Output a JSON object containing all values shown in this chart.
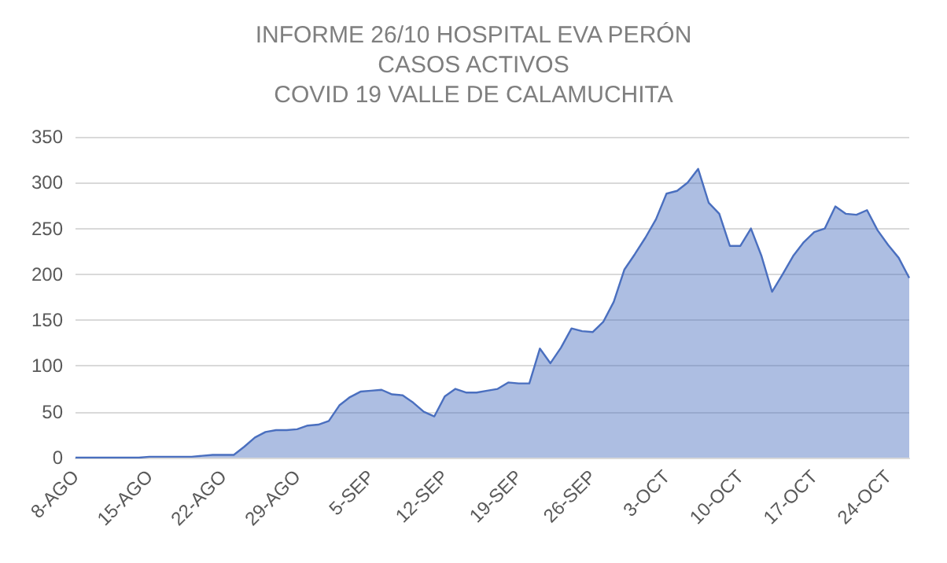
{
  "chart_data": {
    "type": "area",
    "title": "INFORME 26/10 HOSPITAL EVA PERÓN\nCASOS ACTIVOS\nCOVID 19 VALLE DE CALAMUCHITA",
    "categories": [
      "8-AGO",
      null,
      null,
      null,
      null,
      null,
      null,
      "15-AGO",
      null,
      null,
      null,
      null,
      null,
      null,
      "22-AGO",
      null,
      null,
      null,
      null,
      null,
      null,
      "29-AGO",
      null,
      null,
      null,
      null,
      null,
      null,
      "5-SEP",
      null,
      null,
      null,
      null,
      null,
      null,
      "12-SEP",
      null,
      null,
      null,
      null,
      null,
      null,
      "19-SEP",
      null,
      null,
      null,
      null,
      null,
      null,
      "26-SEP",
      null,
      null,
      null,
      null,
      null,
      null,
      "3-OCT",
      null,
      null,
      null,
      null,
      null,
      null,
      "10-OCT",
      null,
      null,
      null,
      null,
      null,
      null,
      "17-OCT",
      null,
      null,
      null,
      null,
      null,
      null,
      "24-OCT",
      null,
      null
    ],
    "series": [
      {
        "color": "#4a6fbf",
        "values": [
          0,
          0,
          0,
          0,
          0,
          0,
          0,
          1,
          1,
          1,
          1,
          1,
          2,
          3,
          3,
          3,
          12,
          22,
          28,
          30,
          30,
          31,
          35,
          36,
          40,
          57,
          66,
          72,
          73,
          74,
          69,
          68,
          60,
          50,
          45,
          67,
          75,
          71,
          71,
          73,
          75,
          82,
          81,
          81,
          119,
          103,
          120,
          141,
          138,
          137,
          148,
          170,
          205,
          222,
          240,
          260,
          288,
          291,
          300,
          315,
          278,
          266,
          231,
          231,
          250,
          220,
          181,
          200,
          220,
          235,
          246,
          250,
          274,
          266,
          265,
          270,
          248,
          232,
          218,
          196
        ]
      }
    ],
    "ylim": [
      0,
      350
    ],
    "yticks": [
      0,
      50,
      100,
      150,
      200,
      250,
      300,
      350
    ],
    "grid": "y"
  }
}
